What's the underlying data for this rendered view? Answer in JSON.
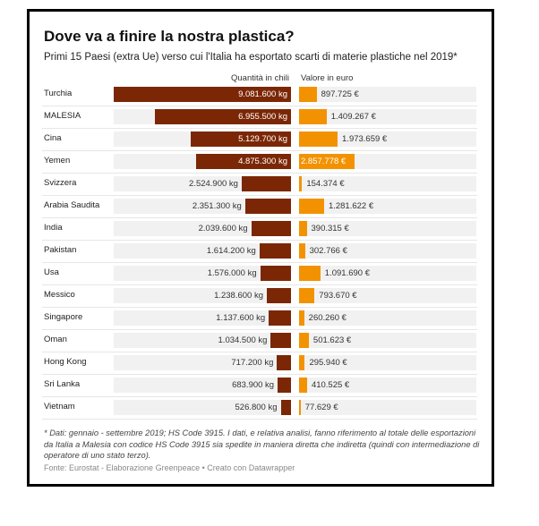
{
  "chart_data": {
    "type": "bar",
    "title": "Dove va a finire la nostra plastica?",
    "subtitle": "Primi 15 Paesi (extra Ue) verso cui l'Italia ha esportato scarti di materie plastiche nel 2019*",
    "columns": [
      "Quantità in chili",
      "Valore in euro"
    ],
    "categories": [
      "Turchia",
      "MALESIA",
      "Cina",
      "Yemen",
      "Svizzera",
      "Arabia Saudita",
      "India",
      "Pakistan",
      "Usa",
      "Messico",
      "Singapore",
      "Oman",
      "Hong Kong",
      "Sri Lanka",
      "Vietnam"
    ],
    "series": [
      {
        "name": "Quantità in chili",
        "color": "#7b2706",
        "values": [
          9081600,
          6955500,
          5129700,
          4875300,
          2524900,
          2351300,
          2039600,
          1614200,
          1576000,
          1238600,
          1137600,
          1034500,
          717200,
          683900,
          526800
        ],
        "labels": [
          "9.081.600 kg",
          "6.955.500 kg",
          "5.129.700 kg",
          "4.875.300 kg",
          "2.524.900 kg",
          "2.351.300 kg",
          "2.039.600 kg",
          "1.614.200 kg",
          "1.576.000 kg",
          "1.238.600 kg",
          "1.137.600 kg",
          "1.034.500 kg",
          "717.200 kg",
          "683.900 kg",
          "526.800 kg"
        ]
      },
      {
        "name": "Valore in euro",
        "color": "#f39200",
        "values": [
          897725,
          1409267,
          1973659,
          2857778,
          154374,
          1281622,
          390315,
          302766,
          1091690,
          793670,
          260260,
          501623,
          295940,
          410525,
          77629
        ],
        "labels": [
          "897.725 €",
          "1.409.267 €",
          "1.973.659 €",
          "2.857.778 €",
          "154.374 €",
          "1.281.622 €",
          "390.315 €",
          "302.766 €",
          "1.091.690 €",
          "793.670 €",
          "260.260 €",
          "501.623 €",
          "295.940 €",
          "410.525 €",
          "77.629 €"
        ]
      }
    ],
    "xlim": [
      0,
      9081600
    ]
  },
  "notes": "* Dati: gennaio - settembre 2019; HS Code 3915. I dati, e relativa analisi, fanno riferimento al totale delle esportazioni da Italia a Malesia con codice HS Code 3915 sia spedite in maniera diretta che indiretta (quindi con intermediazione di operatore di uno stato terzo).",
  "source": "Fonte: Eurostat - Elaborazione Greenpeace • Creato con Datawrapper"
}
